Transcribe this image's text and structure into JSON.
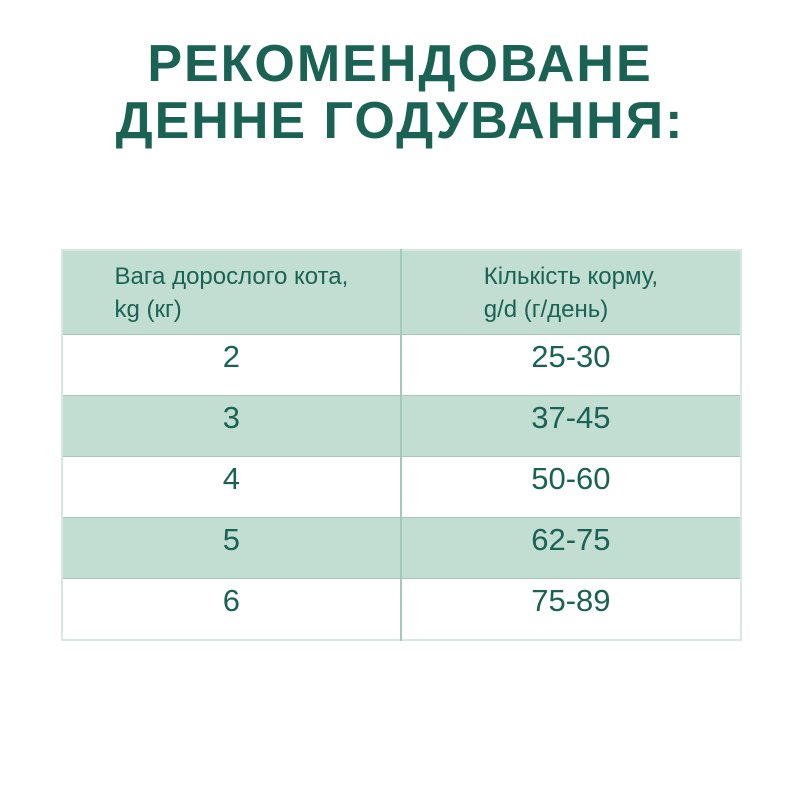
{
  "title": {
    "line1": "РЕКОМЕНДОВАНЕ",
    "line2": "ДЕННЕ ГОДУВАННЯ:"
  },
  "table": {
    "columns": [
      {
        "label_line1": "Вага дорослого кота,",
        "label_line2": "kg (кг)"
      },
      {
        "label_line1": "Кількість корму,",
        "label_line2": "g/d (г/день)"
      }
    ],
    "rows": [
      {
        "weight": "2",
        "amount": "25-30"
      },
      {
        "weight": "3",
        "amount": "37-45"
      },
      {
        "weight": "4",
        "amount": "50-60"
      },
      {
        "weight": "5",
        "amount": "62-75"
      },
      {
        "weight": "6",
        "amount": "75-89"
      }
    ]
  },
  "colors": {
    "accent": "#1a6354",
    "mint": "#c2ded2",
    "grid": "#a6c8ba",
    "outer_border": "#d5e9e0",
    "background": "#ffffff"
  }
}
